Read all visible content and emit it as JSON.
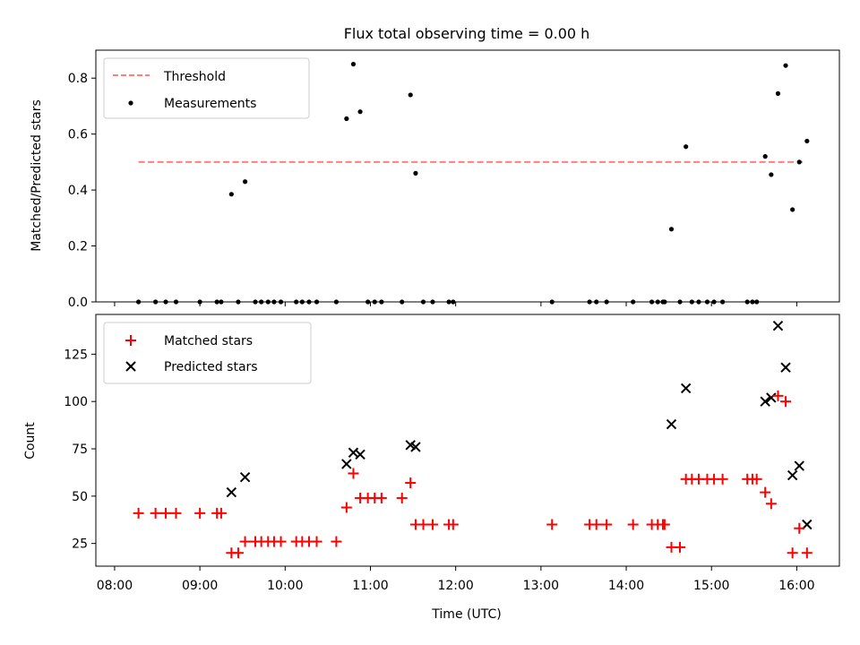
{
  "figure": {
    "title": "Flux total observing time = 0.00 h",
    "x_tick_labels": [
      "08:00",
      "09:00",
      "10:00",
      "11:00",
      "12:00",
      "13:00",
      "14:00",
      "15:00",
      "16:00"
    ],
    "xlabel": "Time (UTC)"
  },
  "chart_data": [
    {
      "type": "scatter",
      "ylabel": "Matched/Predicted stars",
      "xlim": [
        7.78,
        16.5
      ],
      "ylim": [
        0,
        0.9
      ],
      "y_ticks": [
        0.0,
        0.2,
        0.4,
        0.6,
        0.8
      ],
      "y_tick_labels": [
        "0.0",
        "0.2",
        "0.4",
        "0.6",
        "0.8"
      ],
      "legend_position": "top-left",
      "grid": false,
      "threshold": {
        "name": "Threshold",
        "y": 0.5,
        "x_range": [
          8.28,
          16.07
        ],
        "color": "#ff7f7f",
        "style": "dashed"
      },
      "series": [
        {
          "name": "Measurements",
          "color": "#000000",
          "x": [
            8.28,
            8.48,
            8.6,
            8.72,
            9.0,
            9.2,
            9.25,
            9.37,
            9.45,
            9.53,
            9.65,
            9.72,
            9.8,
            9.87,
            9.95,
            10.13,
            10.2,
            10.28,
            10.37,
            10.6,
            10.72,
            10.8,
            10.88,
            10.97,
            11.05,
            11.13,
            11.37,
            11.47,
            11.53,
            11.62,
            11.73,
            11.92,
            11.97,
            13.13,
            13.57,
            13.65,
            13.77,
            14.08,
            14.3,
            14.37,
            14.43,
            14.45,
            14.53,
            14.63,
            14.7,
            14.77,
            14.85,
            14.95,
            15.03,
            15.13,
            15.42,
            15.48,
            15.53,
            15.63,
            15.7,
            15.78,
            15.87,
            15.95,
            16.03,
            16.12
          ],
          "y": [
            0,
            0,
            0,
            0,
            0,
            0,
            0,
            0.385,
            0,
            0.43,
            0,
            0,
            0,
            0,
            0,
            0,
            0,
            0,
            0,
            0,
            0.655,
            0.85,
            0.68,
            0,
            0,
            0,
            0,
            0.74,
            0.46,
            0,
            0,
            0,
            0,
            0,
            0,
            0,
            0,
            0,
            0,
            0,
            0,
            0,
            0.26,
            0,
            0.555,
            0,
            0,
            0,
            0,
            0,
            0,
            0,
            0,
            0.52,
            0.455,
            0.745,
            0.845,
            0.33,
            0.5,
            0.575
          ]
        }
      ]
    },
    {
      "type": "scatter",
      "xlabel": "Time (UTC)",
      "ylabel": "Count",
      "xlim": [
        7.78,
        16.5
      ],
      "ylim": [
        13,
        146
      ],
      "y_ticks": [
        25,
        50,
        75,
        100,
        125
      ],
      "y_tick_labels": [
        "25",
        "50",
        "75",
        "100",
        "125"
      ],
      "legend_position": "top-left",
      "grid": false,
      "series": [
        {
          "name": "Matched stars",
          "marker": "plus",
          "color": "#ff0000",
          "x": [
            8.28,
            8.48,
            8.6,
            8.72,
            9.0,
            9.2,
            9.25,
            9.37,
            9.45,
            9.53,
            9.65,
            9.72,
            9.8,
            9.87,
            9.95,
            10.13,
            10.2,
            10.28,
            10.37,
            10.6,
            10.72,
            10.8,
            10.88,
            10.97,
            11.05,
            11.13,
            11.37,
            11.47,
            11.53,
            11.62,
            11.73,
            11.92,
            11.97,
            13.13,
            13.57,
            13.65,
            13.77,
            14.08,
            14.3,
            14.37,
            14.43,
            14.45,
            14.53,
            14.63,
            14.7,
            14.77,
            14.85,
            14.95,
            15.03,
            15.13,
            15.42,
            15.48,
            15.53,
            15.63,
            15.7,
            15.78,
            15.87,
            15.95,
            16.03,
            16.12
          ],
          "y": [
            41,
            41,
            41,
            41,
            41,
            41,
            41,
            20,
            20,
            26,
            26,
            26,
            26,
            26,
            26,
            26,
            26,
            26,
            26,
            26,
            44,
            62,
            49,
            49,
            49,
            49,
            49,
            57,
            35,
            35,
            35,
            35,
            35,
            35,
            35,
            35,
            35,
            35,
            35,
            35,
            35,
            35,
            23,
            23,
            59,
            59,
            59,
            59,
            59,
            59,
            59,
            59,
            59,
            52,
            46,
            103,
            100,
            20,
            33,
            20
          ]
        },
        {
          "name": "Predicted stars",
          "marker": "x",
          "color": "#000000",
          "x": [
            9.37,
            9.53,
            10.72,
            10.8,
            10.88,
            11.47,
            11.53,
            14.53,
            14.7,
            15.63,
            15.7,
            15.78,
            15.87,
            15.95,
            16.03,
            16.12
          ],
          "y": [
            52,
            60,
            67,
            73,
            72,
            77,
            76,
            88,
            107,
            100,
            102,
            140,
            118,
            61,
            66,
            35
          ]
        }
      ]
    }
  ]
}
